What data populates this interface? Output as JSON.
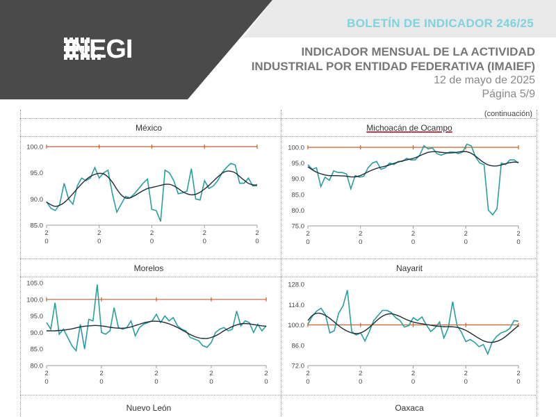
{
  "header": {
    "logo_text": "INEGI",
    "bulletin": "BOLETÍN DE INDICADOR 246/25",
    "title_line1": "INDICADOR MENSUAL DE LA ACTIVIDAD",
    "title_line2": "INDUSTRIAL POR ENTIDAD FEDERATIVA (IMAIEF)",
    "date": "12 de mayo de 2025",
    "page": "Página 5/9",
    "continuation": "(continuación)"
  },
  "colors": {
    "series": "#2a9d9d",
    "trend": "#1f2a36",
    "reference": "#c0622f",
    "header_dark": "#4a4a4a"
  },
  "panels_bottom": {
    "left": "Nuevo León",
    "right": "Oaxaca"
  },
  "chart_data": [
    {
      "type": "line",
      "title": "México",
      "ylim": [
        85,
        100
      ],
      "yticks": [
        "100.0",
        "95.0",
        "90.0",
        "85.0"
      ],
      "xtick_labels": [
        "2\n0",
        "2\n0",
        "2\n0",
        "2\n0",
        "2\n0"
      ],
      "reference": 100,
      "series": [
        {
          "values": [
            89.5,
            88.2,
            87.8,
            89.0,
            93.0,
            90.0,
            89.0,
            92.5,
            94.0,
            93.5,
            94.0,
            96.0,
            94.0,
            95.0,
            95.5,
            91.0,
            87.5,
            89.0,
            90.5,
            90.2,
            91.0,
            92.0,
            93.0,
            93.8,
            88.0,
            87.8,
            85.7,
            95.5,
            95.0,
            93.5,
            91.0,
            91.2,
            91.5,
            95.8,
            90.0,
            89.8,
            93.5,
            92.0,
            92.5,
            93.5,
            95.0,
            96.0,
            96.8,
            96.5,
            93.0,
            93.0,
            94.0,
            92.5,
            92.5
          ]
        },
        {
          "values": [
            89.4,
            88.9,
            88.6,
            88.8,
            89.3,
            90.1,
            91.0,
            92.0,
            92.9,
            93.7,
            94.3,
            94.7,
            94.9,
            94.8,
            94.2,
            93.2,
            91.9,
            90.8,
            90.2,
            90.2,
            90.6,
            91.1,
            91.6,
            92.0,
            92.2,
            92.4,
            92.6,
            92.8,
            92.8,
            92.5,
            92.0,
            91.4,
            91.0,
            90.8,
            90.9,
            91.3,
            91.9,
            92.6,
            93.4,
            94.2,
            94.9,
            95.3,
            95.3,
            95.0,
            94.3,
            93.6,
            93.0,
            92.7,
            92.7
          ]
        }
      ]
    },
    {
      "type": "line",
      "title": "Michoacán de Ocampo",
      "ylim": [
        75,
        100
      ],
      "yticks": [
        "100.0",
        "95.0",
        "90.0",
        "85.0",
        "80.0",
        "75.0"
      ],
      "xtick_labels": [
        "2\n0",
        "2\n0",
        "2\n0",
        "2\n0",
        "2\n0"
      ],
      "reference": 100,
      "series": [
        {
          "values": [
            94.5,
            93.0,
            93.5,
            87.5,
            90.5,
            89.5,
            92.5,
            92.0,
            92.0,
            91.5,
            86.8,
            91.0,
            90.5,
            90.8,
            93.5,
            95.0,
            95.5,
            93.0,
            93.5,
            95.0,
            94.5,
            95.5,
            95.5,
            96.5,
            96.0,
            96.0,
            97.5,
            100.5,
            99.5,
            99.8,
            98.0,
            97.5,
            98.0,
            98.5,
            98.5,
            98.0,
            98.5,
            101.0,
            100.5,
            97.0,
            95.0,
            94.5,
            80.0,
            78.5,
            80.5,
            95.0,
            94.5,
            96.0,
            96.0,
            95.0
          ]
        },
        {
          "values": [
            93.8,
            92.9,
            92.1,
            91.6,
            91.2,
            91.0,
            91.0,
            91.0,
            90.9,
            90.8,
            90.6,
            90.6,
            90.9,
            91.5,
            92.2,
            92.8,
            93.3,
            93.7,
            94.0,
            94.4,
            94.9,
            95.3,
            95.7,
            96.0,
            96.3,
            96.7,
            97.3,
            97.9,
            98.4,
            98.6,
            98.6,
            98.4,
            98.3,
            98.2,
            98.3,
            98.5,
            98.7,
            98.6,
            98.1,
            97.2,
            96.1,
            95.1,
            94.4,
            94.1,
            94.1,
            94.4,
            94.8,
            95.1,
            95.3,
            95.2
          ]
        }
      ]
    },
    {
      "type": "line",
      "title": "Morelos",
      "ylim": [
        80,
        105
      ],
      "yticks": [
        "105.0",
        "100.0",
        "95.0",
        "90.0",
        "85.0",
        "80.0"
      ],
      "xtick_labels": [
        "2\n0",
        "2\n0",
        "2\n0",
        "2\n0",
        "2\n0"
      ],
      "reference": 100,
      "series": [
        {
          "values": [
            93.0,
            91.0,
            99.0,
            89.5,
            91.0,
            88.5,
            86.0,
            84.5,
            92.5,
            85.0,
            94.0,
            93.5,
            104.5,
            90.0,
            89.5,
            90.5,
            97.5,
            91.5,
            91.0,
            91.5,
            93.5,
            89.0,
            91.5,
            92.5,
            93.0,
            93.5,
            95.5,
            93.0,
            95.0,
            93.5,
            94.5,
            92.0,
            91.0,
            90.5,
            88.5,
            88.0,
            87.5,
            86.0,
            85.5,
            87.0,
            90.0,
            91.0,
            91.5,
            90.5,
            91.0,
            96.5,
            92.0,
            93.5,
            93.0,
            90.0,
            92.5,
            90.5,
            92.0
          ]
        },
        {
          "values": [
            90.5,
            90.5,
            90.5,
            90.6,
            90.7,
            90.9,
            91.1,
            91.4,
            91.7,
            91.9,
            92.0,
            92.1,
            92.1,
            92.0,
            91.8,
            91.6,
            91.4,
            91.3,
            91.3,
            91.4,
            91.7,
            92.1,
            92.5,
            92.9,
            93.2,
            93.4,
            93.4,
            93.3,
            93.0,
            92.6,
            92.1,
            91.5,
            90.8,
            90.1,
            89.4,
            88.8,
            88.4,
            88.2,
            88.2,
            88.5,
            89.0,
            89.7,
            90.5,
            91.2,
            91.8,
            92.3,
            92.6,
            92.7,
            92.6,
            92.4,
            92.2,
            92.0,
            91.9
          ]
        }
      ]
    },
    {
      "type": "line",
      "title": "Nayarit",
      "ylim": [
        72,
        128
      ],
      "yticks": [
        "128.0",
        "114.0",
        "100.0",
        "86.0",
        "72.0"
      ],
      "xtick_labels": [
        "2\n0",
        "2\n0",
        "2\n0",
        "2\n0",
        "2\n0"
      ],
      "reference": 100,
      "series": [
        {
          "values": [
            100.5,
            106.0,
            109.5,
            111.5,
            107.0,
            94.5,
            96.0,
            108.0,
            113.0,
            124.0,
            95.5,
            93.0,
            94.5,
            89.0,
            95.5,
            103.0,
            106.5,
            110.0,
            110.0,
            108.5,
            105.0,
            103.0,
            98.5,
            99.5,
            105.0,
            103.0,
            105.5,
            100.0,
            95.5,
            98.0,
            102.0,
            91.0,
            98.0,
            116.0,
            99.5,
            95.0,
            88.5,
            90.0,
            88.0,
            85.0,
            86.5,
            80.0,
            88.0,
            92.0,
            94.5,
            95.5,
            97.5,
            103.0,
            102.5
          ]
        },
        {
          "values": [
            103.0,
            106.5,
            108.0,
            107.8,
            106.5,
            104.5,
            102.0,
            99.5,
            97.3,
            95.7,
            94.5,
            94.0,
            94.5,
            96.0,
            98.3,
            101.0,
            103.8,
            106.0,
            107.3,
            107.7,
            107.0,
            105.8,
            104.3,
            103.0,
            102.0,
            101.3,
            100.8,
            100.3,
            99.8,
            99.3,
            99.0,
            98.8,
            98.8,
            98.7,
            98.3,
            97.5,
            96.2,
            94.5,
            92.6,
            90.7,
            89.1,
            88.2,
            88.0,
            88.6,
            89.9,
            91.9,
            94.4,
            97.0,
            99.6
          ]
        }
      ]
    }
  ]
}
